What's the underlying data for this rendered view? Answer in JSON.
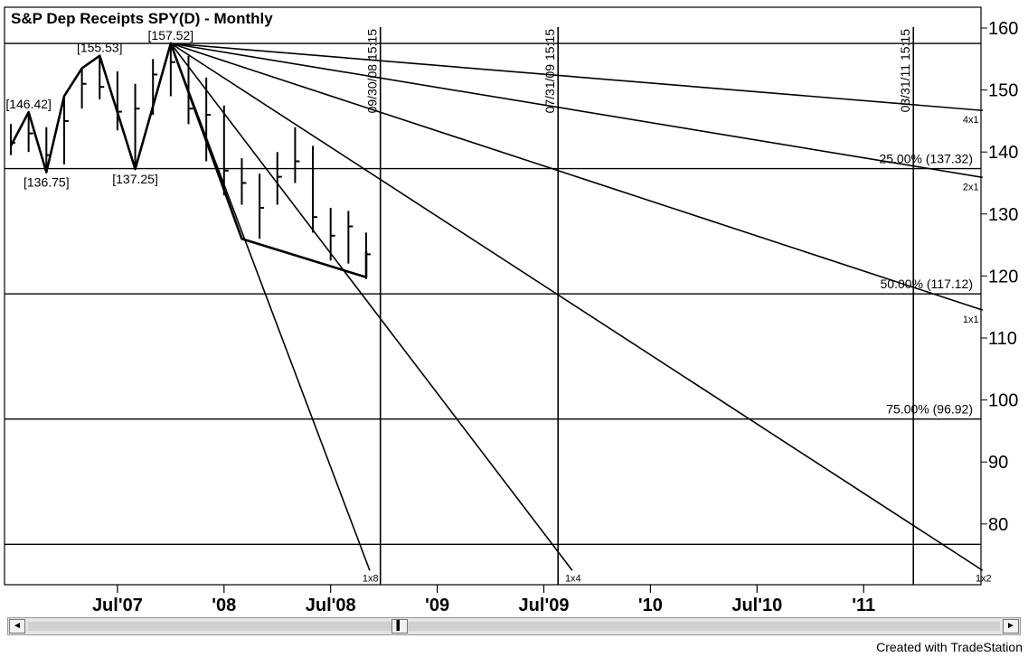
{
  "chart_data": {
    "type": "line",
    "title": "S&P Dep Receipts SPY(D) - Monthly",
    "y_axis": {
      "min": 70,
      "max": 162,
      "ticks": [
        80,
        90,
        100,
        110,
        120,
        130,
        140,
        150,
        160
      ],
      "position": "right"
    },
    "x_axis": {
      "ticks": [
        {
          "label": "Jul'07",
          "t": 6
        },
        {
          "label": "'08",
          "t": 12
        },
        {
          "label": "Jul'08",
          "t": 18
        },
        {
          "label": "'09",
          "t": 24
        },
        {
          "label": "Jul'09",
          "t": 30
        },
        {
          "label": "'10",
          "t": 36
        },
        {
          "label": "Jul'10",
          "t": 42
        },
        {
          "label": "'11",
          "t": 48
        }
      ]
    },
    "price_bars": [
      {
        "t": 0,
        "high": 144.5,
        "low": 139.5,
        "close": 141.5
      },
      {
        "t": 1,
        "high": 146.4,
        "low": 140.0,
        "close": 143.0
      },
      {
        "t": 2,
        "high": 144.0,
        "low": 136.8,
        "close": 139.5
      },
      {
        "t": 3,
        "high": 149.0,
        "low": 138.0,
        "close": 145.0
      },
      {
        "t": 4,
        "high": 153.5,
        "low": 147.0,
        "close": 151.0
      },
      {
        "t": 5,
        "high": 155.5,
        "low": 148.5,
        "close": 150.5
      },
      {
        "t": 6,
        "high": 153.0,
        "low": 143.5,
        "close": 146.5
      },
      {
        "t": 7,
        "high": 151.0,
        "low": 137.3,
        "close": 147.0
      },
      {
        "t": 8,
        "high": 155.0,
        "low": 146.0,
        "close": 152.5
      },
      {
        "t": 9,
        "high": 157.5,
        "low": 149.0,
        "close": 154.5
      },
      {
        "t": 10,
        "high": 155.5,
        "low": 144.5,
        "close": 147.0
      },
      {
        "t": 11,
        "high": 152.0,
        "low": 138.5,
        "close": 146.0
      },
      {
        "t": 12,
        "high": 147.5,
        "low": 133.0,
        "close": 137.0
      },
      {
        "t": 13,
        "high": 139.0,
        "low": 131.5,
        "close": 135.0
      },
      {
        "t": 14,
        "high": 136.5,
        "low": 126.0,
        "close": 131.0
      },
      {
        "t": 15,
        "high": 140.0,
        "low": 131.5,
        "close": 136.0
      },
      {
        "t": 16,
        "high": 144.0,
        "low": 135.0,
        "close": 138.5
      },
      {
        "t": 17,
        "high": 141.0,
        "low": 127.0,
        "close": 129.5
      },
      {
        "t": 18,
        "high": 131.0,
        "low": 122.5,
        "close": 126.5
      },
      {
        "t": 19,
        "high": 130.5,
        "low": 122.0,
        "close": 128.0
      },
      {
        "t": 20,
        "high": 127.0,
        "low": 119.5,
        "close": 123.5
      }
    ],
    "swing_line": [
      {
        "t": 0,
        "v": 141.0
      },
      {
        "t": 1,
        "v": 146.42
      },
      {
        "t": 2,
        "v": 136.75
      },
      {
        "t": 3,
        "v": 149.0
      },
      {
        "t": 4,
        "v": 153.5
      },
      {
        "t": 5,
        "v": 155.53
      },
      {
        "t": 7,
        "v": 137.25
      },
      {
        "t": 9,
        "v": 157.52
      },
      {
        "t": 13,
        "v": 126.0
      },
      {
        "t": 20,
        "v": 119.8
      },
      {
        "t": 20,
        "v": 124.0
      }
    ],
    "swing_labels": [
      {
        "text": "[146.42]",
        "t": 1,
        "v": 146.42,
        "pos": "above"
      },
      {
        "text": "[136.75]",
        "t": 2,
        "v": 136.75,
        "pos": "below"
      },
      {
        "text": "[155.53]",
        "t": 5,
        "v": 155.53,
        "pos": "above"
      },
      {
        "text": "[137.25]",
        "t": 7,
        "v": 137.25,
        "pos": "below"
      },
      {
        "text": "[157.52]",
        "t": 9,
        "v": 157.52,
        "pos": "above"
      }
    ],
    "gann_fan": {
      "origin": {
        "t": 9,
        "v": 157.52
      },
      "lines": [
        {
          "label": "4x1",
          "end": {
            "t": 54.7,
            "v": 146.7
          }
        },
        {
          "label": "2x1",
          "end": {
            "t": 54.7,
            "v": 135.9
          }
        },
        {
          "label": "1x1",
          "end": {
            "t": 54.7,
            "v": 114.5
          }
        },
        {
          "label": "1x2",
          "end": {
            "t": 54.7,
            "v": 72.5
          }
        },
        {
          "label": "1x4",
          "end": {
            "t": 31.6,
            "v": 72.5
          }
        },
        {
          "label": "1x8",
          "end": {
            "t": 20.2,
            "v": 72.5
          }
        }
      ]
    },
    "retracement_levels": [
      {
        "v": 157.52,
        "label": ""
      },
      {
        "v": 137.32,
        "label": "25.00% (137.32)"
      },
      {
        "v": 117.12,
        "label": "50.00% (117.12)"
      },
      {
        "v": 96.92,
        "label": "75.00% (96.92)"
      },
      {
        "v": 76.72,
        "label": ""
      }
    ],
    "time_lines": [
      {
        "t": 20.8,
        "label": "09/30/08 15:15"
      },
      {
        "t": 30.8,
        "label": "07/31/09 15:15"
      },
      {
        "t": 50.8,
        "label": "03/31/11 15:15"
      }
    ],
    "grid": false,
    "legend": "none"
  },
  "footer": {
    "credit": "Created with TradeStation"
  },
  "scrollbar": {
    "left_arrow": "◄",
    "right_arrow": "►",
    "thumb": "▌"
  }
}
